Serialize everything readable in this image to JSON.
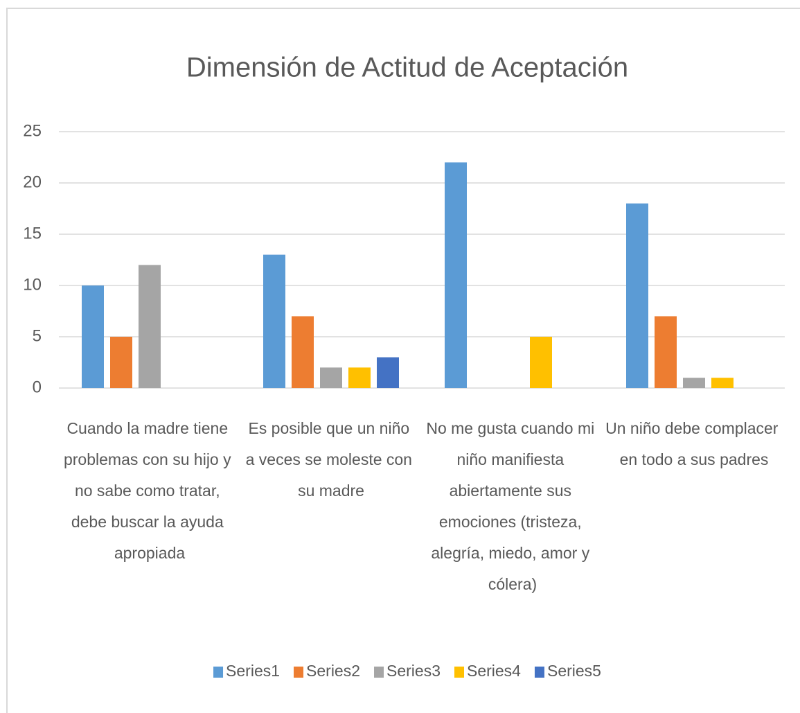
{
  "chart_data": {
    "type": "bar",
    "title": "Dimensión de Actitud de Aceptación",
    "categories": [
      "Cuando la madre tiene problemas con su hijo y no sabe como tratar, debe buscar la ayuda apropiada",
      "Es posible que un niño a veces se moleste con su madre",
      "No me gusta cuando mi niño manifiesta abiertamente sus emociones (tristeza, alegría, miedo, amor y cólera)",
      "Un niño debe complacer en todo a sus padres"
    ],
    "series": [
      {
        "name": "Series1",
        "color": "#5b9bd5",
        "values": [
          10,
          13,
          22,
          18
        ]
      },
      {
        "name": "Series2",
        "color": "#ed7d31",
        "values": [
          5,
          7,
          0,
          7
        ]
      },
      {
        "name": "Series3",
        "color": "#a5a5a5",
        "values": [
          12,
          2,
          0,
          1
        ]
      },
      {
        "name": "Series4",
        "color": "#ffc000",
        "values": [
          0,
          2,
          5,
          1
        ]
      },
      {
        "name": "Series5",
        "color": "#4472c4",
        "values": [
          0,
          3,
          0,
          0
        ]
      }
    ],
    "ylim": [
      0,
      25
    ],
    "yticks": [
      0,
      5,
      10,
      15,
      20,
      25
    ],
    "grid": true,
    "legend": "bottom"
  }
}
